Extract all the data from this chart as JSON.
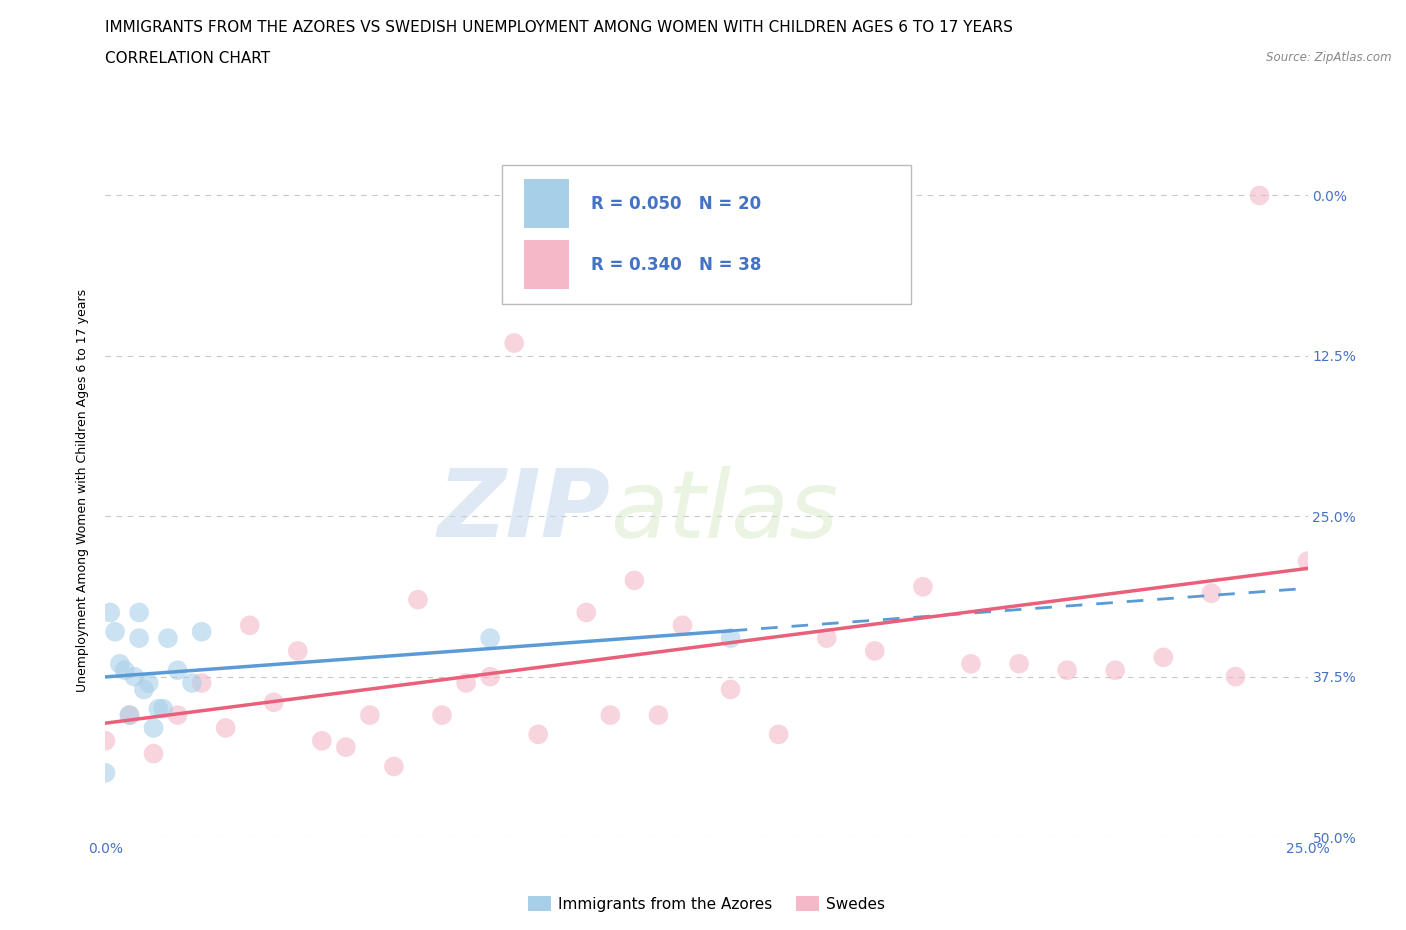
{
  "title": "IMMIGRANTS FROM THE AZORES VS SWEDISH UNEMPLOYMENT AMONG WOMEN WITH CHILDREN AGES 6 TO 17 YEARS",
  "subtitle": "CORRELATION CHART",
  "source": "Source: ZipAtlas.com",
  "ylabel": "Unemployment Among Women with Children Ages 6 to 17 years",
  "xlim": [
    0.0,
    0.25
  ],
  "ylim": [
    0.0,
    0.54
  ],
  "xticks": [
    0.0,
    0.05,
    0.1,
    0.15,
    0.2,
    0.25
  ],
  "yticks": [
    0.0,
    0.125,
    0.25,
    0.375,
    0.5
  ],
  "color_blue": "#a8cfe8",
  "color_blue_line": "#5b9bd5",
  "color_pink": "#f4b8c8",
  "color_pink_line": "#e8607a",
  "color_text_blue": "#4472c4",
  "watermark_zip": "ZIP",
  "watermark_atlas": "atlas",
  "legend_label1": "Immigrants from the Azores",
  "legend_label2": "Swedes",
  "blue_x": [
    0.0,
    0.001,
    0.002,
    0.003,
    0.004,
    0.005,
    0.006,
    0.007,
    0.007,
    0.008,
    0.009,
    0.01,
    0.011,
    0.012,
    0.013,
    0.015,
    0.018,
    0.02,
    0.08,
    0.13
  ],
  "blue_y": [
    0.05,
    0.175,
    0.16,
    0.135,
    0.13,
    0.095,
    0.125,
    0.155,
    0.175,
    0.115,
    0.12,
    0.085,
    0.1,
    0.1,
    0.155,
    0.13,
    0.12,
    0.16,
    0.155,
    0.155
  ],
  "pink_x": [
    0.0,
    0.005,
    0.01,
    0.015,
    0.02,
    0.025,
    0.03,
    0.035,
    0.04,
    0.045,
    0.05,
    0.055,
    0.06,
    0.065,
    0.07,
    0.075,
    0.08,
    0.085,
    0.09,
    0.1,
    0.105,
    0.11,
    0.115,
    0.12,
    0.13,
    0.14,
    0.15,
    0.16,
    0.17,
    0.18,
    0.19,
    0.2,
    0.21,
    0.22,
    0.23,
    0.235,
    0.24,
    0.25
  ],
  "pink_y": [
    0.075,
    0.095,
    0.065,
    0.095,
    0.12,
    0.085,
    0.165,
    0.105,
    0.145,
    0.075,
    0.07,
    0.095,
    0.055,
    0.185,
    0.095,
    0.12,
    0.125,
    0.385,
    0.08,
    0.175,
    0.095,
    0.2,
    0.095,
    0.165,
    0.115,
    0.08,
    0.155,
    0.145,
    0.195,
    0.135,
    0.135,
    0.13,
    0.13,
    0.14,
    0.19,
    0.125,
    0.5,
    0.215
  ],
  "background_color": "#ffffff"
}
